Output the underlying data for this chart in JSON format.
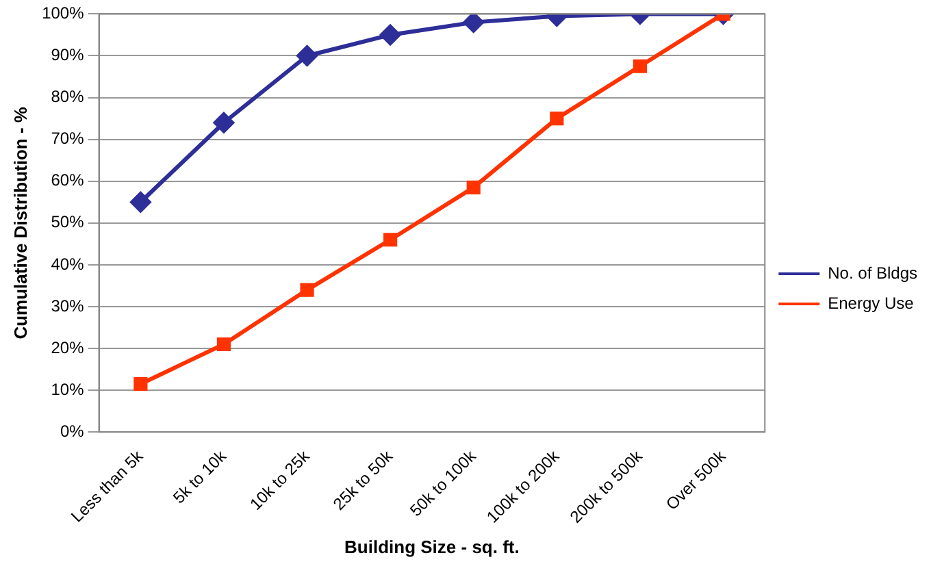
{
  "chart_data": {
    "type": "line",
    "xlabel": "Building Size - sq. ft.",
    "ylabel": "Cumulative Distribution - %",
    "categories": [
      "Less than 5k",
      "5k to 10k",
      "10k to 25k",
      "25k to 50k",
      "50k to 100k",
      "100k to 200k",
      "200k to 500k",
      "Over 500k"
    ],
    "series": [
      {
        "name": "No. of Bldgs",
        "color": "#2e2e99",
        "marker": "diamond",
        "values": [
          55,
          74,
          90,
          95,
          98,
          99.5,
          100,
          100
        ]
      },
      {
        "name": "Energy Use",
        "color": "#ff3300",
        "marker": "square",
        "values": [
          11.5,
          21,
          34,
          46,
          58.5,
          75,
          87.5,
          100
        ]
      }
    ],
    "ylim": [
      0,
      100
    ],
    "yticks": [
      {
        "value": 0,
        "label": "0%"
      },
      {
        "value": 10,
        "label": "10%"
      },
      {
        "value": 20,
        "label": "20%"
      },
      {
        "value": 30,
        "label": "30%"
      },
      {
        "value": 40,
        "label": "40%"
      },
      {
        "value": 50,
        "label": "50%"
      },
      {
        "value": 60,
        "label": "60%"
      },
      {
        "value": 70,
        "label": "70%"
      },
      {
        "value": 80,
        "label": "80%"
      },
      {
        "value": 90,
        "label": "90%"
      },
      {
        "value": 100,
        "label": "100%"
      }
    ],
    "grid": "y",
    "legend": "right",
    "line_style": "solid"
  }
}
